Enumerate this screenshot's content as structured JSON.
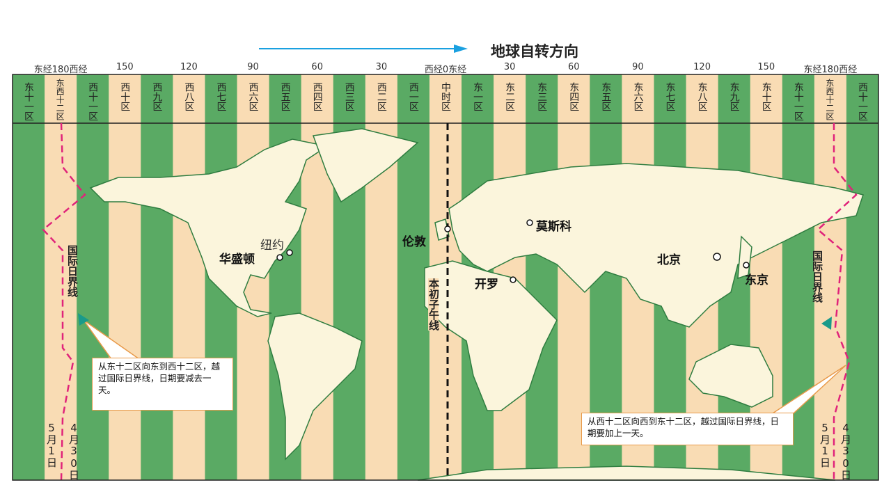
{
  "title": "地球自转方向",
  "longitudes": [
    "东经180西经",
    "150",
    "120",
    "90",
    "60",
    "30",
    "西经0东经",
    "30",
    "60",
    "90",
    "120",
    "150",
    "东经180西经"
  ],
  "zones": [
    "东十一区",
    "东西十二区",
    "西十一区",
    "西十区",
    "西九区",
    "西八区",
    "西七区",
    "西六区",
    "西五区",
    "西四区",
    "西三区",
    "西二区",
    "西一区",
    "中时区",
    "东一区",
    "东二区",
    "东三区",
    "东四区",
    "东五区",
    "东六区",
    "东七区",
    "东八区",
    "东九区",
    "东十区",
    "东十一区",
    "东西十二区",
    "西十一区"
  ],
  "cities": {
    "newyork": "纽约",
    "washington": "华盛顿",
    "london": "伦敦",
    "moscow": "莫斯科",
    "beijing": "北京",
    "tokyo": "东京",
    "cairo": "开罗"
  },
  "meridian_label": "本初子午线",
  "dateline_labels": [
    "国际日界线",
    "国际日界线"
  ],
  "notes": [
    "从东十二区向东到西十二区，越过国际日界线，日期要减去一天。",
    "从西十二区向西到东十二区，越过国际日界线，日期要加上一天。"
  ],
  "dates": [
    "5月1日",
    "4月30日",
    "5月1日",
    "4月30日"
  ]
}
